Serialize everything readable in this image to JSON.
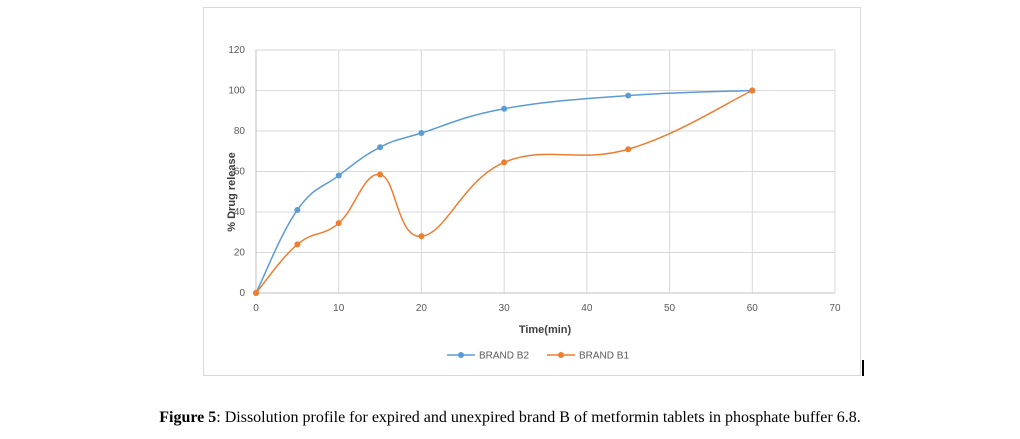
{
  "chart_data": {
    "type": "line",
    "title": "",
    "xlabel": "Time(min)",
    "ylabel": "% Drug release",
    "xlim": [
      0,
      70
    ],
    "ylim": [
      0,
      120
    ],
    "xticks": [
      0,
      10,
      20,
      30,
      40,
      50,
      60,
      70
    ],
    "yticks": [
      0,
      20,
      40,
      60,
      80,
      100,
      120
    ],
    "grid": true,
    "legend_position": "bottom",
    "smooth": true,
    "series": [
      {
        "name": "BRAND B2",
        "color": "#5b9bd5",
        "x": [
          0,
          5,
          10,
          15,
          20,
          30,
          45,
          60
        ],
        "y": [
          0,
          41,
          58,
          72,
          79,
          91,
          97.5,
          100
        ]
      },
      {
        "name": "BRAND B1",
        "color": "#ed7d31",
        "x": [
          0,
          5,
          10,
          15,
          20,
          30,
          45,
          60
        ],
        "y": [
          0,
          24,
          34.5,
          58.5,
          28,
          64.5,
          71,
          100
        ]
      }
    ]
  },
  "caption": {
    "label": "Figure 5",
    "text": ": Dissolution profile for expired and unexpired brand B of metformin tablets in phosphate buffer 6.8."
  }
}
